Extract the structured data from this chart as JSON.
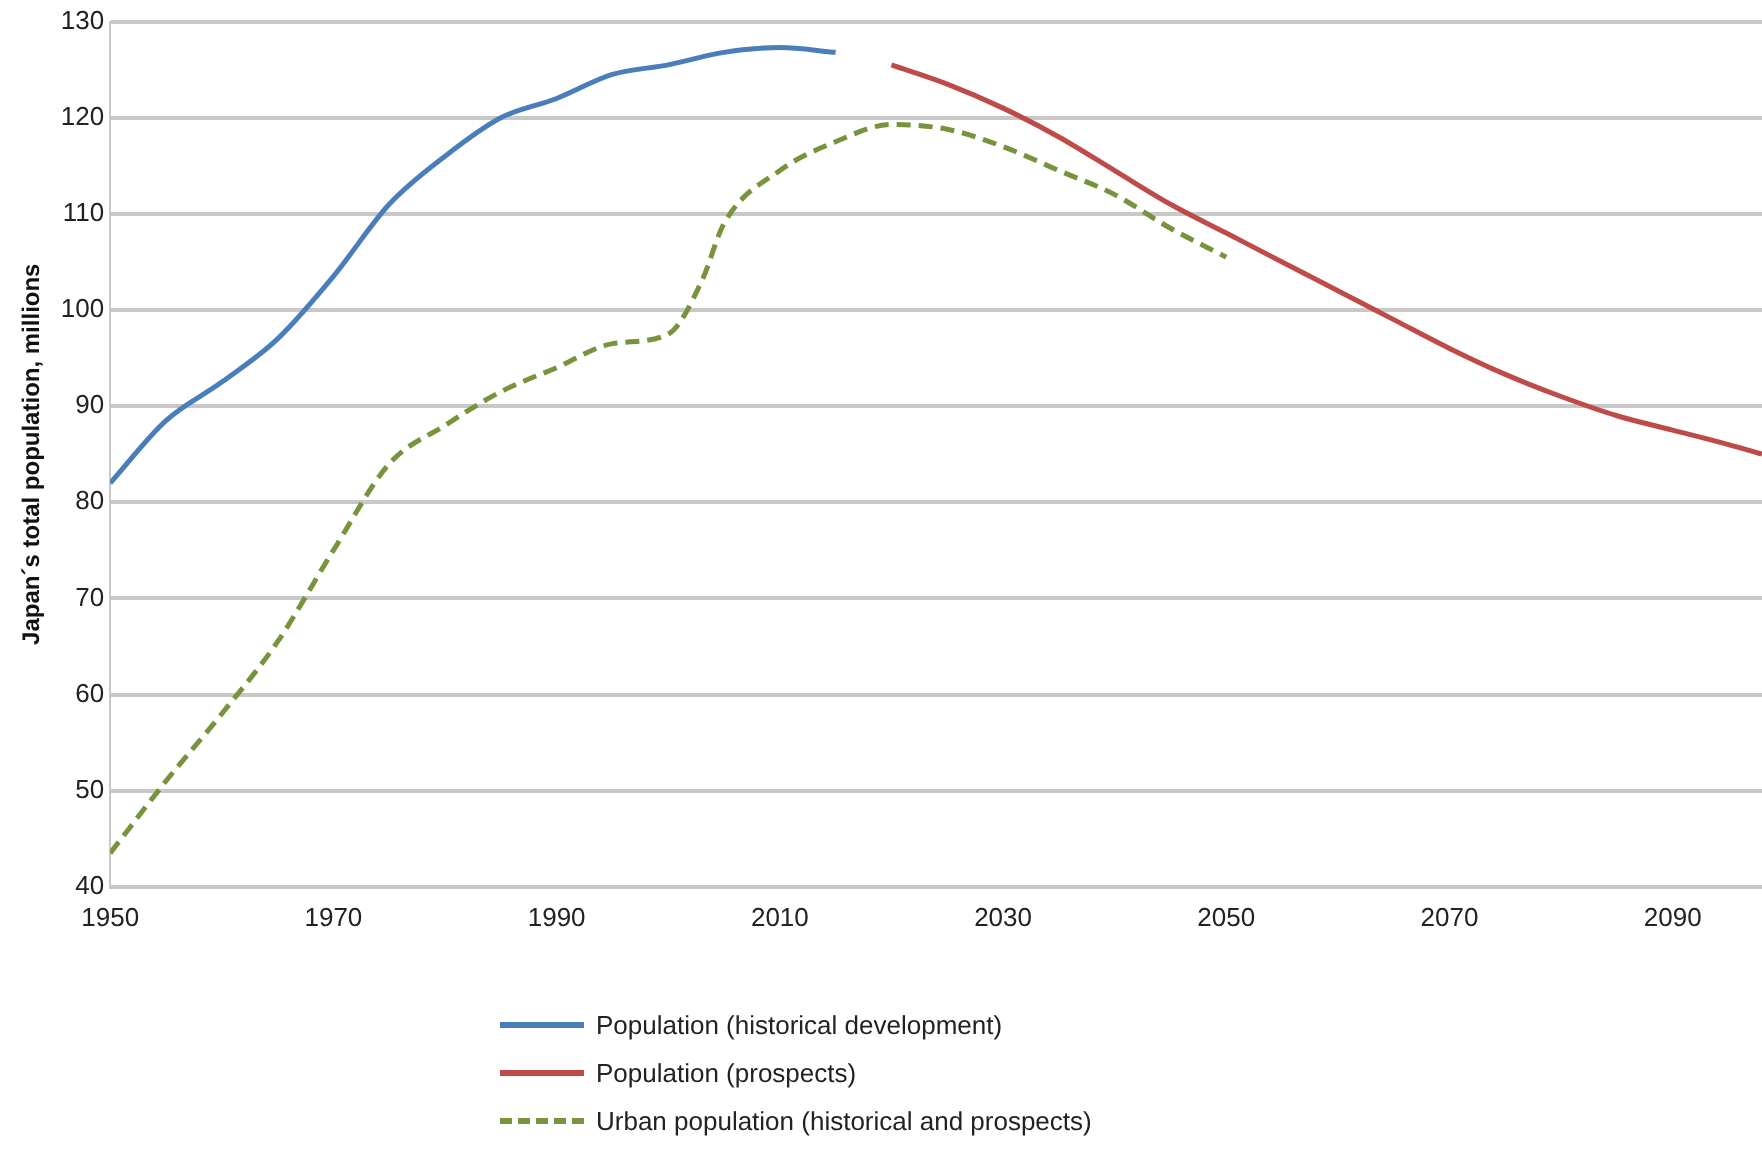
{
  "chart_data": {
    "type": "line",
    "ylabel": "Japan´s total population, millions",
    "xlim": [
      1950,
      2098
    ],
    "xticks": [
      1950,
      1970,
      1990,
      2010,
      2030,
      2050,
      2070,
      2090
    ],
    "ylim": [
      40,
      130
    ],
    "yticks": [
      40,
      50,
      60,
      70,
      80,
      90,
      100,
      110,
      120,
      130
    ],
    "grid": "y",
    "legend": "bottom",
    "marker": "none",
    "series": [
      {
        "name": "Population (historical development)",
        "color": "#4a7ebb",
        "line_style": "solid",
        "x": [
          1950,
          1955,
          1960,
          1965,
          1970,
          1975,
          1980,
          1985,
          1990,
          1995,
          2000,
          2005,
          2010,
          2015
        ],
        "values": [
          82,
          88.5,
          92.5,
          97,
          103.5,
          111,
          116,
          120,
          122,
          124.5,
          125.5,
          126.8,
          127.3,
          126.8
        ]
      },
      {
        "name": "Population (prospects)",
        "color": "#be4b48",
        "line_style": "solid",
        "x": [
          2020,
          2025,
          2030,
          2035,
          2040,
          2045,
          2050,
          2055,
          2060,
          2065,
          2070,
          2075,
          2080,
          2085,
          2090,
          2095,
          2098
        ],
        "values": [
          125.5,
          123.5,
          121,
          118,
          114.5,
          111,
          108,
          105,
          102,
          99,
          96,
          93.3,
          91,
          89,
          87.5,
          86,
          85
        ]
      },
      {
        "name": "Urban population (historical and prospects)",
        "color": "#77933c",
        "line_style": "dashed",
        "x": [
          1950,
          1955,
          1960,
          1965,
          1970,
          1975,
          1980,
          1985,
          1990,
          1995,
          2000,
          2003,
          2005,
          2010,
          2015,
          2020,
          2025,
          2030,
          2035,
          2040,
          2045,
          2050
        ],
        "values": [
          43.5,
          51,
          58,
          65.5,
          75,
          84,
          88,
          91.5,
          94,
          96.5,
          97.5,
          103,
          109,
          114.5,
          117.5,
          119.3,
          118.8,
          117,
          114.5,
          112,
          108.5,
          105.5
        ]
      }
    ]
  }
}
